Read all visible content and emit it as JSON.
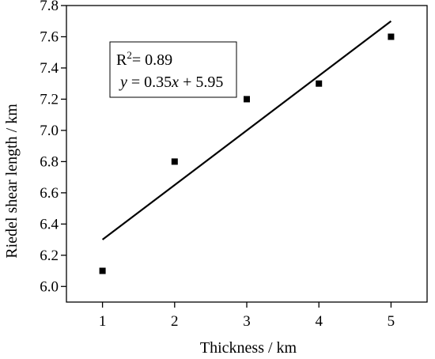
{
  "chart_data": {
    "type": "scatter",
    "title": "",
    "xlabel": "Thickness / km",
    "ylabel": "Riedel shear length / km",
    "xlim": [
      0.5,
      5.5
    ],
    "ylim": [
      5.9,
      7.8
    ],
    "x_ticks": [
      1,
      2,
      3,
      4,
      5
    ],
    "x_tick_labels": [
      "1",
      "2",
      "3",
      "4",
      "5"
    ],
    "y_ticks": [
      6.0,
      6.2,
      6.4,
      6.6,
      6.8,
      7.0,
      7.2,
      7.4,
      7.6,
      7.8
    ],
    "y_tick_labels": [
      "6.0",
      "6.2",
      "6.4",
      "6.6",
      "6.8",
      "7.0",
      "7.2",
      "7.4",
      "7.6",
      "7.8"
    ],
    "grid": false,
    "legend": "none",
    "series": [
      {
        "marker": "square",
        "color": "#000000",
        "points": [
          {
            "x": 1,
            "y": 6.1
          },
          {
            "x": 2,
            "y": 6.8
          },
          {
            "x": 3,
            "y": 7.2
          },
          {
            "x": 4,
            "y": 7.3
          },
          {
            "x": 5,
            "y": 7.6
          }
        ]
      }
    ],
    "fit_line": {
      "slope": 0.35,
      "intercept": 5.95,
      "x_range": [
        1,
        5
      ],
      "color": "#000000"
    },
    "annotation": {
      "r2_label": "R",
      "r2_sup": "2",
      "r2_value": "= 0.89",
      "eq_y": "y",
      "eq_mid": " = 0.35",
      "eq_x": "x",
      "eq_rest": " + 5.95",
      "placement": "top-left"
    }
  }
}
